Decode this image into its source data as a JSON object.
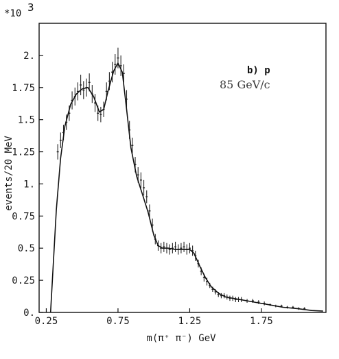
{
  "chart_data": {
    "type": "scatter",
    "title": "",
    "xlabel": "m(π⁺ π⁻) GeV",
    "ylabel": "events/20 MeV",
    "y_multiplier": "*10",
    "y_multiplier_exp": "3",
    "xlim": [
      0.2,
      2.2
    ],
    "ylim": [
      0,
      2.25
    ],
    "x_ticks": [
      0.25,
      0.75,
      1.25,
      1.75
    ],
    "x_tick_labels": [
      "0.25",
      "0.75",
      "1.25",
      "1.75"
    ],
    "y_ticks": [
      0,
      0.25,
      0.5,
      0.75,
      1.0,
      1.25,
      1.5,
      1.75,
      2.0
    ],
    "y_tick_labels": [
      "0.",
      "0.25",
      "0.5",
      "0.75",
      "1.",
      "1.25",
      "1.5",
      "1.75",
      "2."
    ],
    "annotations": {
      "label": "b) p",
      "energy": "85 GeV/c"
    },
    "fit_curve": {
      "x": [
        0.28,
        0.3,
        0.32,
        0.35,
        0.38,
        0.42,
        0.46,
        0.5,
        0.54,
        0.58,
        0.62,
        0.65,
        0.68,
        0.72,
        0.75,
        0.78,
        0.81,
        0.84,
        0.88,
        0.92,
        0.96,
        1.0,
        1.03,
        1.06,
        1.1,
        1.15,
        1.2,
        1.25,
        1.28,
        1.32,
        1.36,
        1.4,
        1.45,
        1.5,
        1.55,
        1.6,
        1.7,
        1.8,
        1.9,
        2.0,
        2.1,
        2.18
      ],
      "y": [
        0.0,
        0.4,
        0.8,
        1.2,
        1.45,
        1.62,
        1.7,
        1.74,
        1.75,
        1.68,
        1.56,
        1.58,
        1.72,
        1.88,
        1.94,
        1.87,
        1.58,
        1.28,
        1.06,
        0.92,
        0.78,
        0.6,
        0.52,
        0.5,
        0.5,
        0.49,
        0.49,
        0.49,
        0.46,
        0.36,
        0.27,
        0.2,
        0.15,
        0.12,
        0.11,
        0.1,
        0.08,
        0.06,
        0.04,
        0.03,
        0.015,
        0.01
      ]
    },
    "series": [
      {
        "x": [
          0.33,
          0.35,
          0.37,
          0.39,
          0.41,
          0.43,
          0.45,
          0.47,
          0.49,
          0.51,
          0.53,
          0.55,
          0.57,
          0.59,
          0.61,
          0.63,
          0.65,
          0.67,
          0.69,
          0.71,
          0.73,
          0.75,
          0.77,
          0.79,
          0.81,
          0.83,
          0.85,
          0.87,
          0.89,
          0.91,
          0.93,
          0.95,
          0.97,
          0.99,
          1.01,
          1.03,
          1.05,
          1.07,
          1.09,
          1.11,
          1.13,
          1.15,
          1.17,
          1.19,
          1.21,
          1.23,
          1.25,
          1.27,
          1.29,
          1.31,
          1.33,
          1.35,
          1.37,
          1.39,
          1.41,
          1.43,
          1.45,
          1.47,
          1.49,
          1.51,
          1.53,
          1.55,
          1.57,
          1.59,
          1.61,
          1.65,
          1.69,
          1.73,
          1.77,
          1.81,
          1.85,
          1.89,
          1.93,
          1.97,
          2.01,
          2.05
        ],
        "y": [
          1.25,
          1.34,
          1.4,
          1.48,
          1.55,
          1.65,
          1.68,
          1.72,
          1.77,
          1.73,
          1.75,
          1.79,
          1.7,
          1.63,
          1.55,
          1.54,
          1.58,
          1.72,
          1.8,
          1.87,
          1.93,
          1.98,
          1.92,
          1.86,
          1.66,
          1.42,
          1.3,
          1.15,
          1.07,
          1.03,
          0.97,
          0.9,
          0.79,
          0.68,
          0.57,
          0.52,
          0.5,
          0.51,
          0.5,
          0.49,
          0.5,
          0.51,
          0.49,
          0.5,
          0.51,
          0.49,
          0.5,
          0.48,
          0.44,
          0.38,
          0.32,
          0.27,
          0.24,
          0.21,
          0.18,
          0.16,
          0.14,
          0.13,
          0.13,
          0.12,
          0.11,
          0.11,
          0.1,
          0.1,
          0.1,
          0.09,
          0.09,
          0.08,
          0.07,
          0.06,
          0.05,
          0.05,
          0.04,
          0.04,
          0.03,
          0.03
        ],
        "err": [
          0.06,
          0.06,
          0.06,
          0.06,
          0.06,
          0.07,
          0.07,
          0.07,
          0.08,
          0.07,
          0.07,
          0.07,
          0.07,
          0.07,
          0.06,
          0.06,
          0.06,
          0.07,
          0.07,
          0.08,
          0.08,
          0.08,
          0.08,
          0.07,
          0.07,
          0.07,
          0.06,
          0.06,
          0.06,
          0.06,
          0.06,
          0.05,
          0.05,
          0.05,
          0.04,
          0.04,
          0.04,
          0.04,
          0.04,
          0.04,
          0.04,
          0.04,
          0.04,
          0.04,
          0.04,
          0.04,
          0.04,
          0.04,
          0.04,
          0.03,
          0.03,
          0.03,
          0.03,
          0.02,
          0.02,
          0.02,
          0.02,
          0.02,
          0.02,
          0.02,
          0.02,
          0.02,
          0.02,
          0.02,
          0.02,
          0.015,
          0.015,
          0.015,
          0.015,
          0.01,
          0.01,
          0.01,
          0.01,
          0.01,
          0.01,
          0.01
        ]
      }
    ],
    "grid": false,
    "legend": "none"
  }
}
